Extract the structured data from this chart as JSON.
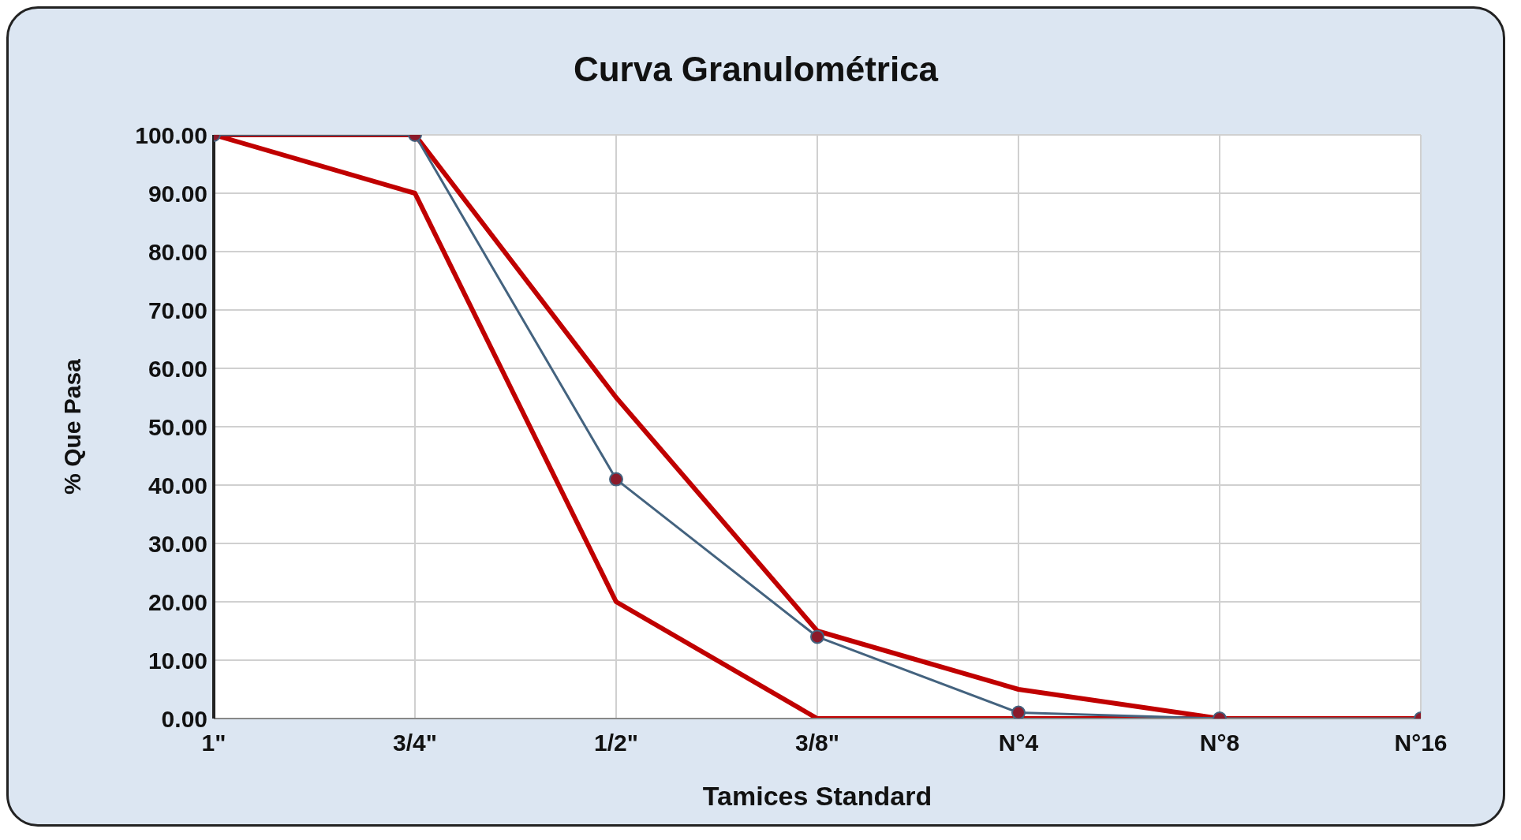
{
  "chart_data": {
    "type": "line",
    "title": "Curva Granulométrica",
    "xlabel": "Tamices Standard",
    "ylabel": "% Que Pasa",
    "categories": [
      "1\"",
      "3/4\"",
      "1/2\"",
      "3/8\"",
      "N°4",
      "N°8",
      "N°16"
    ],
    "series": [
      {
        "color": "#c00000",
        "values": [
          100,
          90,
          20,
          0,
          0,
          0,
          0
        ],
        "marker": "none"
      },
      {
        "color": "#c00000",
        "values": [
          100,
          100,
          55,
          15,
          5,
          0,
          0
        ],
        "marker": "none"
      },
      {
        "color": "#44637f",
        "values": [
          100,
          100,
          41,
          14,
          1,
          0,
          0
        ],
        "marker": "circle"
      }
    ],
    "ylim": [
      0,
      100
    ],
    "yticks": [
      {
        "value": 0,
        "label": "0.00"
      },
      {
        "value": 10,
        "label": "10.00"
      },
      {
        "value": 20,
        "label": "20.00"
      },
      {
        "value": 30,
        "label": "30.00"
      },
      {
        "value": 40,
        "label": "40.00"
      },
      {
        "value": 50,
        "label": "50.00"
      },
      {
        "value": 60,
        "label": "60.00"
      },
      {
        "value": 70,
        "label": "70.00"
      },
      {
        "value": 80,
        "label": "80.00"
      },
      {
        "value": 90,
        "label": "90.00"
      },
      {
        "value": 100,
        "label": "100.00"
      }
    ],
    "grid": true,
    "legend": false
  }
}
